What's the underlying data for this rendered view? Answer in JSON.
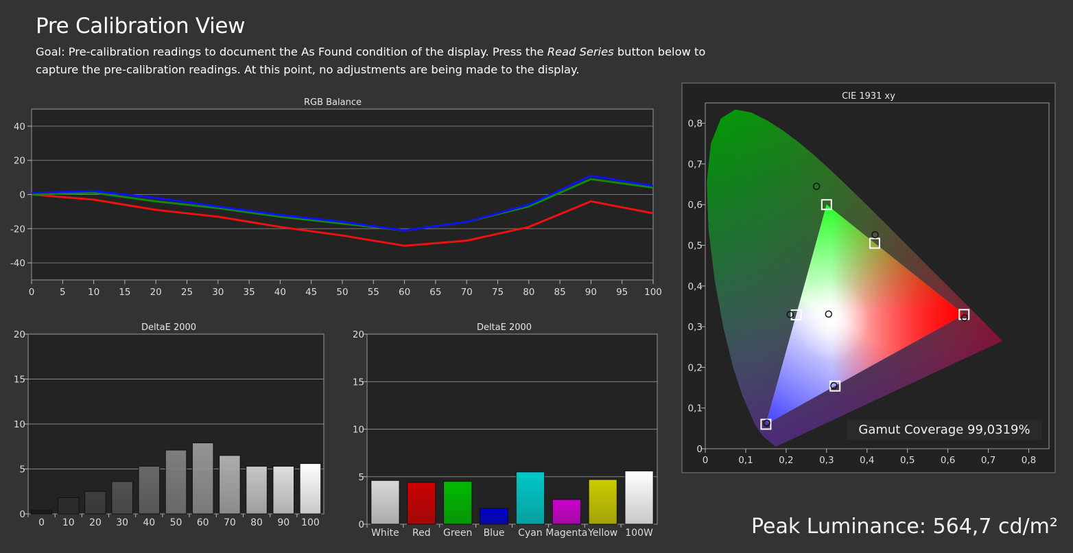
{
  "page": {
    "title": "Pre Calibration View",
    "goal_prefix": "Goal: Pre-calibration readings to document the As Found condition of the display. Press the ",
    "goal_emphasis": "Read Series",
    "goal_suffix": " button below to capture the pre-calibration readings. At this point, no adjustments are being made to the display.",
    "peak_luminance": "Peak Luminance: 564,7 cd/m²",
    "gamut_coverage": "Gamut Coverage 99,0319%"
  },
  "colors": {
    "red": "#ee1111",
    "green": "#118811",
    "blue": "#1111ee",
    "plot_bg": "#232323",
    "grid": "#888888"
  },
  "chart_data": [
    {
      "id": "rgb",
      "type": "line",
      "title": "RGB Balance",
      "xlim": [
        0,
        100
      ],
      "ylim": [
        -50,
        50
      ],
      "xticks": [
        0,
        5,
        10,
        15,
        20,
        25,
        30,
        35,
        40,
        45,
        50,
        55,
        60,
        65,
        70,
        75,
        80,
        85,
        90,
        95,
        100
      ],
      "yticks": [
        -40,
        -20,
        0,
        20,
        40
      ],
      "x": [
        0,
        10,
        20,
        30,
        40,
        50,
        60,
        70,
        80,
        90,
        100
      ],
      "series": [
        {
          "color": "#ee1111",
          "values": [
            0,
            -3,
            -9,
            -13,
            -19,
            -24,
            -30,
            -27,
            -19,
            -4,
            -11
          ]
        },
        {
          "color": "#118811",
          "values": [
            0,
            1,
            -4,
            -8,
            -13,
            -17,
            -21,
            -16,
            -7,
            9,
            4
          ]
        },
        {
          "color": "#1111ee",
          "values": [
            1,
            2,
            -2,
            -7,
            -12,
            -16,
            -21,
            -16,
            -6,
            11,
            5
          ]
        }
      ]
    },
    {
      "id": "de_gray",
      "type": "bar",
      "title": "DeltaE 2000",
      "ylim": [
        0,
        20
      ],
      "yticks": [
        0,
        5,
        10,
        15,
        20
      ],
      "categories": [
        "0",
        "10",
        "20",
        "30",
        "40",
        "50",
        "60",
        "70",
        "80",
        "90",
        "100"
      ],
      "values": [
        0.4,
        1.8,
        2.5,
        3.6,
        5.3,
        7.1,
        7.9,
        6.5,
        5.3,
        5.3,
        5.6
      ],
      "colors": [
        "#1a1a1a",
        "#2c2c2c",
        "#3e3e3e",
        "#525252",
        "#686868",
        "#7e7e7e",
        "#959595",
        "#adadad",
        "#c6c6c6",
        "#dedede",
        "#ffffff"
      ]
    },
    {
      "id": "de_color",
      "type": "bar",
      "title": "DeltaE 2000",
      "ylim": [
        0,
        20
      ],
      "yticks": [
        0,
        5,
        10,
        15,
        20
      ],
      "categories": [
        "White",
        "Red",
        "Green",
        "Blue",
        "Cyan",
        "Magenta",
        "Yellow",
        "100W"
      ],
      "values": [
        4.6,
        4.4,
        4.5,
        1.7,
        5.5,
        2.6,
        4.7,
        5.6
      ],
      "colors": [
        "#d8d8d8",
        "#cc0000",
        "#00bb00",
        "#0000cc",
        "#00c8c8",
        "#cc00cc",
        "#cccc00",
        "#ffffff"
      ]
    },
    {
      "id": "cie",
      "type": "scatter",
      "title": "CIE 1931 xy",
      "xlim": [
        0,
        0.85
      ],
      "ylim": [
        0,
        0.85
      ],
      "xticks": [
        "0",
        "0,1",
        "0,2",
        "0,3",
        "0,4",
        "0,5",
        "0,6",
        "0,7",
        "0,8"
      ],
      "yticks": [
        "0",
        "0,1",
        "0,2",
        "0,3",
        "0,4",
        "0,5",
        "0,6",
        "0,7",
        "0,8"
      ],
      "targets": [
        {
          "name": "Red",
          "x": 0.64,
          "y": 0.33
        },
        {
          "name": "Green",
          "x": 0.3,
          "y": 0.6
        },
        {
          "name": "Blue",
          "x": 0.15,
          "y": 0.06
        },
        {
          "name": "Cyan",
          "x": 0.225,
          "y": 0.329
        },
        {
          "name": "Magenta",
          "x": 0.321,
          "y": 0.154
        },
        {
          "name": "Yellow",
          "x": 0.419,
          "y": 0.505
        },
        {
          "name": "White",
          "x": 0.3127,
          "y": 0.329
        }
      ],
      "measured": [
        {
          "name": "Red",
          "x": 0.641,
          "y": 0.322
        },
        {
          "name": "Green",
          "x": 0.275,
          "y": 0.645
        },
        {
          "name": "Blue",
          "x": 0.152,
          "y": 0.063
        },
        {
          "name": "Cyan",
          "x": 0.21,
          "y": 0.33
        },
        {
          "name": "Magenta",
          "x": 0.318,
          "y": 0.155
        },
        {
          "name": "Yellow",
          "x": 0.42,
          "y": 0.526
        },
        {
          "name": "White",
          "x": 0.305,
          "y": 0.331
        }
      ]
    }
  ]
}
